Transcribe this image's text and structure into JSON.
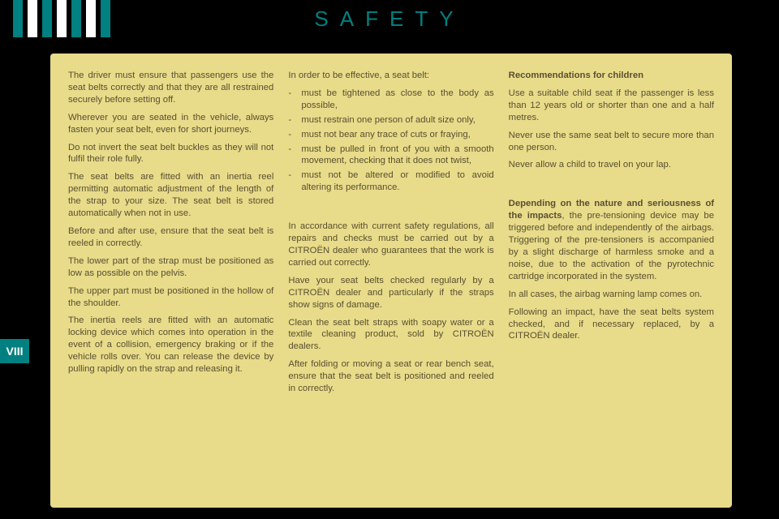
{
  "header": {
    "title": "SAFETY",
    "bar_colors": [
      "#008080",
      "#ffffff",
      "#008080",
      "#ffffff",
      "#008080",
      "#ffffff",
      "#008080"
    ]
  },
  "side_tab": "VIII",
  "panel": {
    "background": "#e8db8a",
    "text_color": "#595030"
  },
  "col1": {
    "p1": "The driver must ensure that passengers use the seat belts correctly and that they are all restrained securely before setting off.",
    "p2": "Wherever you are seated in the vehicle, always fasten your seat belt, even for short journeys.",
    "p3": "Do not invert the seat belt buckles as they will not fulfil their role fully.",
    "p4": "The seat belts are fitted with an inertia reel permitting automatic adjustment of the length of the strap to your size. The seat belt is stored automatically when not in use.",
    "p5": "Before and after use, ensure that the seat belt is reeled in correctly.",
    "p6": "The lower part of the strap must be positioned as low as possible on the pelvis.",
    "p7": "The upper part must be positioned in the hollow of the shoulder.",
    "p8": "The inertia reels are fitted with an automatic locking device which comes into operation in the event of a collision, emergency braking or if the vehicle rolls over. You can release the device by pulling rapidly on the strap and releasing it."
  },
  "col2": {
    "intro": "In order to be effective, a seat belt:",
    "li1": "must be tightened as close to the body as possible,",
    "li2": "must restrain one person of adult size only,",
    "li3": "must not bear any trace of cuts or fraying,",
    "li4": "must be pulled in front of you with a smooth movement, checking that it does not twist,",
    "li5": "must not be altered or modified to avoid altering its performance.",
    "p1": "In accordance with current safety regulations, all repairs and checks must be carried out by a CITROËN dealer who guarantees that the work is carried out correctly.",
    "p2": "Have your seat belts checked regularly by a CITROËN dealer and particularly if the straps show signs of damage.",
    "p3": "Clean the seat belt straps with soapy water or a textile cleaning product, sold by CITROËN dealers.",
    "p4": "After folding or moving a seat or rear bench seat, ensure that the seat belt is positioned and reeled in correctly."
  },
  "col3": {
    "h1": "Recommendations for children",
    "p1": "Use a suitable child seat if the passenger is less than 12 years old or shorter than one and a half metres.",
    "p2": "Never use the same seat belt to secure more than one person.",
    "p3": "Never allow a child to travel on your lap.",
    "h2a": "Depending on the nature and seriousness of the impacts",
    "h2b": ", the pre-tensioning device may be triggered before and independently of the airbags. Triggering of the pre-tensioners is accompanied by a slight discharge of harmless smoke and a noise, due to the activation of the pyrotechnic cartridge incorporated in the system.",
    "p4": "In all cases, the airbag warning lamp comes on.",
    "p5": "Following an impact, have the seat belts system checked, and if necessary replaced, by a CITROËN dealer."
  }
}
